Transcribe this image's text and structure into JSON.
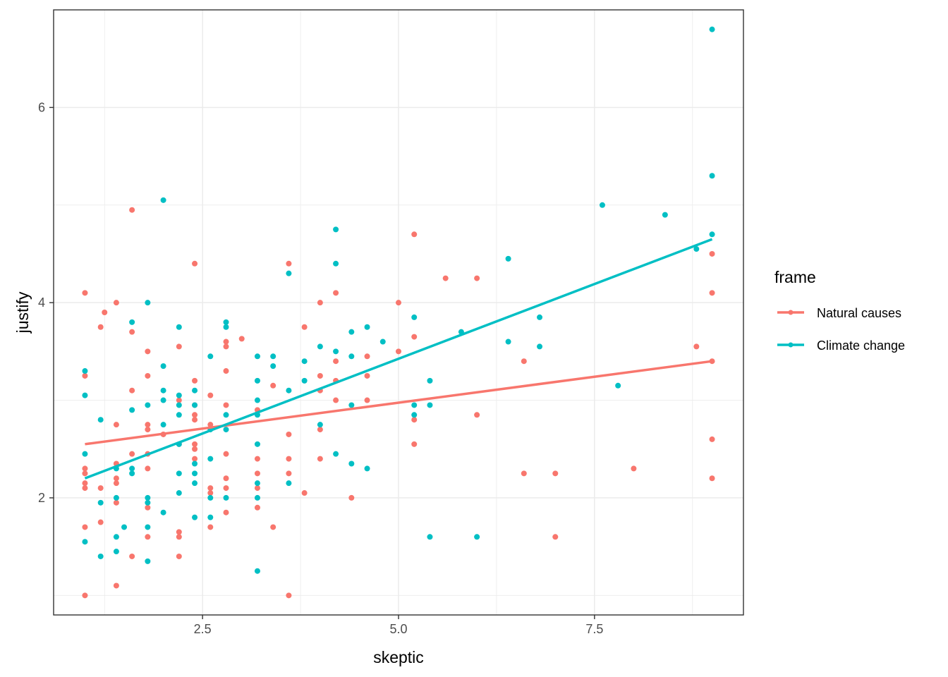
{
  "chart_data": {
    "type": "scatter",
    "title": "",
    "xlabel": "skeptic",
    "ylabel": "justify",
    "xlim": [
      0.6,
      9.4
    ],
    "ylim": [
      0.8,
      7.0
    ],
    "x_ticks": [
      2.5,
      5.0,
      7.5
    ],
    "x_tick_labels": [
      "2.5",
      "5.0",
      "7.5"
    ],
    "y_ticks": [
      2,
      4,
      6
    ],
    "y_tick_labels": [
      "2",
      "4",
      "6"
    ],
    "grid": true,
    "legend": {
      "title": "frame",
      "position": "right",
      "entries": [
        "Natural causes",
        "Climate change"
      ]
    },
    "series": [
      {
        "name": "Natural causes",
        "color": "#F8766D",
        "trend": {
          "x": [
            1.0,
            9.0
          ],
          "y": [
            2.55,
            3.4
          ]
        },
        "points": [
          [
            1.0,
            4.1
          ],
          [
            1.0,
            3.25
          ],
          [
            1.0,
            2.3
          ],
          [
            1.0,
            2.25
          ],
          [
            1.0,
            2.15
          ],
          [
            1.0,
            2.1
          ],
          [
            1.0,
            1.7
          ],
          [
            1.0,
            1.0
          ],
          [
            1.2,
            3.75
          ],
          [
            1.2,
            2.1
          ],
          [
            1.2,
            1.75
          ],
          [
            1.25,
            3.9
          ],
          [
            1.4,
            4.0
          ],
          [
            1.4,
            2.75
          ],
          [
            1.4,
            2.35
          ],
          [
            1.4,
            2.2
          ],
          [
            1.4,
            2.15
          ],
          [
            1.4,
            1.95
          ],
          [
            1.4,
            1.1
          ],
          [
            1.6,
            4.95
          ],
          [
            1.6,
            3.7
          ],
          [
            1.6,
            3.1
          ],
          [
            1.6,
            2.45
          ],
          [
            1.6,
            1.4
          ],
          [
            1.8,
            3.5
          ],
          [
            1.8,
            3.25
          ],
          [
            1.8,
            2.75
          ],
          [
            1.8,
            2.7
          ],
          [
            1.8,
            2.45
          ],
          [
            1.8,
            2.3
          ],
          [
            1.8,
            1.9
          ],
          [
            1.8,
            1.6
          ],
          [
            2.0,
            2.65
          ],
          [
            2.2,
            3.55
          ],
          [
            2.2,
            3.0
          ],
          [
            2.2,
            2.55
          ],
          [
            2.2,
            1.65
          ],
          [
            2.2,
            1.6
          ],
          [
            2.2,
            1.4
          ],
          [
            2.4,
            4.4
          ],
          [
            2.4,
            3.2
          ],
          [
            2.4,
            2.95
          ],
          [
            2.4,
            2.85
          ],
          [
            2.4,
            2.8
          ],
          [
            2.4,
            2.55
          ],
          [
            2.4,
            2.5
          ],
          [
            2.4,
            2.4
          ],
          [
            2.6,
            3.05
          ],
          [
            2.6,
            2.75
          ],
          [
            2.6,
            2.1
          ],
          [
            2.6,
            2.05
          ],
          [
            2.6,
            1.7
          ],
          [
            2.8,
            3.6
          ],
          [
            2.8,
            3.55
          ],
          [
            2.8,
            3.3
          ],
          [
            2.8,
            2.95
          ],
          [
            2.8,
            2.45
          ],
          [
            2.8,
            2.2
          ],
          [
            2.8,
            2.1
          ],
          [
            2.8,
            1.85
          ],
          [
            3.0,
            3.63
          ],
          [
            3.2,
            2.9
          ],
          [
            3.2,
            2.4
          ],
          [
            3.2,
            2.25
          ],
          [
            3.2,
            2.1
          ],
          [
            3.2,
            1.9
          ],
          [
            3.4,
            3.15
          ],
          [
            3.4,
            1.7
          ],
          [
            3.6,
            4.4
          ],
          [
            3.6,
            2.65
          ],
          [
            3.6,
            2.4
          ],
          [
            3.6,
            2.25
          ],
          [
            3.6,
            1.0
          ],
          [
            3.8,
            3.75
          ],
          [
            3.8,
            2.05
          ],
          [
            4.0,
            4.0
          ],
          [
            4.0,
            3.25
          ],
          [
            4.0,
            3.1
          ],
          [
            4.0,
            2.7
          ],
          [
            4.0,
            2.4
          ],
          [
            4.2,
            4.1
          ],
          [
            4.2,
            3.4
          ],
          [
            4.2,
            3.2
          ],
          [
            4.2,
            3.0
          ],
          [
            4.4,
            2.0
          ],
          [
            4.6,
            3.45
          ],
          [
            4.6,
            3.25
          ],
          [
            4.6,
            3.0
          ],
          [
            5.0,
            4.0
          ],
          [
            5.0,
            3.5
          ],
          [
            5.2,
            4.7
          ],
          [
            5.2,
            3.65
          ],
          [
            5.2,
            2.8
          ],
          [
            5.2,
            2.55
          ],
          [
            5.6,
            4.25
          ],
          [
            6.0,
            4.25
          ],
          [
            6.0,
            2.85
          ],
          [
            6.6,
            3.4
          ],
          [
            6.6,
            2.25
          ],
          [
            7.0,
            2.25
          ],
          [
            7.0,
            1.6
          ],
          [
            8.0,
            2.3
          ],
          [
            8.8,
            3.55
          ],
          [
            9.0,
            4.5
          ],
          [
            9.0,
            4.1
          ],
          [
            9.0,
            3.4
          ],
          [
            9.0,
            2.6
          ],
          [
            9.0,
            2.2
          ]
        ]
      },
      {
        "name": "Climate change",
        "color": "#00BFC4",
        "trend": {
          "x": [
            1.0,
            9.0
          ],
          "y": [
            2.2,
            4.65
          ]
        },
        "points": [
          [
            1.0,
            3.3
          ],
          [
            1.0,
            3.05
          ],
          [
            1.0,
            2.45
          ],
          [
            1.0,
            1.55
          ],
          [
            1.2,
            2.8
          ],
          [
            1.2,
            1.95
          ],
          [
            1.2,
            1.4
          ],
          [
            1.4,
            2.3
          ],
          [
            1.4,
            2.0
          ],
          [
            1.4,
            1.6
          ],
          [
            1.4,
            1.45
          ],
          [
            1.5,
            1.7
          ],
          [
            1.6,
            3.8
          ],
          [
            1.6,
            2.9
          ],
          [
            1.6,
            2.3
          ],
          [
            1.6,
            2.25
          ],
          [
            1.8,
            4.0
          ],
          [
            1.8,
            2.95
          ],
          [
            1.8,
            2.0
          ],
          [
            1.8,
            1.95
          ],
          [
            1.8,
            1.7
          ],
          [
            1.8,
            1.35
          ],
          [
            2.0,
            5.05
          ],
          [
            2.0,
            3.35
          ],
          [
            2.0,
            3.1
          ],
          [
            2.0,
            3.0
          ],
          [
            2.0,
            2.75
          ],
          [
            2.0,
            1.85
          ],
          [
            2.2,
            3.75
          ],
          [
            2.2,
            3.05
          ],
          [
            2.2,
            2.95
          ],
          [
            2.2,
            2.85
          ],
          [
            2.2,
            2.55
          ],
          [
            2.2,
            2.25
          ],
          [
            2.2,
            2.05
          ],
          [
            2.4,
            3.1
          ],
          [
            2.4,
            2.95
          ],
          [
            2.4,
            2.35
          ],
          [
            2.4,
            2.25
          ],
          [
            2.4,
            2.15
          ],
          [
            2.4,
            1.8
          ],
          [
            2.6,
            3.45
          ],
          [
            2.6,
            2.7
          ],
          [
            2.6,
            2.4
          ],
          [
            2.6,
            2.0
          ],
          [
            2.6,
            1.8
          ],
          [
            2.8,
            3.8
          ],
          [
            2.8,
            3.75
          ],
          [
            2.8,
            2.85
          ],
          [
            2.8,
            2.7
          ],
          [
            2.8,
            2.0
          ],
          [
            3.2,
            3.45
          ],
          [
            3.2,
            3.2
          ],
          [
            3.2,
            3.0
          ],
          [
            3.2,
            2.85
          ],
          [
            3.2,
            2.55
          ],
          [
            3.2,
            2.15
          ],
          [
            3.2,
            2.0
          ],
          [
            3.2,
            1.25
          ],
          [
            3.4,
            3.45
          ],
          [
            3.4,
            3.35
          ],
          [
            3.6,
            4.3
          ],
          [
            3.6,
            3.1
          ],
          [
            3.6,
            2.15
          ],
          [
            3.8,
            3.4
          ],
          [
            3.8,
            3.2
          ],
          [
            4.0,
            3.55
          ],
          [
            4.0,
            2.75
          ],
          [
            4.2,
            4.75
          ],
          [
            4.2,
            4.4
          ],
          [
            4.2,
            3.5
          ],
          [
            4.2,
            2.45
          ],
          [
            4.4,
            3.7
          ],
          [
            4.4,
            3.45
          ],
          [
            4.4,
            2.95
          ],
          [
            4.4,
            2.35
          ],
          [
            4.6,
            3.75
          ],
          [
            4.6,
            2.3
          ],
          [
            4.8,
            3.6
          ],
          [
            5.2,
            3.85
          ],
          [
            5.2,
            2.95
          ],
          [
            5.2,
            2.85
          ],
          [
            5.4,
            3.2
          ],
          [
            5.4,
            2.95
          ],
          [
            5.4,
            1.6
          ],
          [
            5.8,
            3.7
          ],
          [
            6.0,
            1.6
          ],
          [
            6.4,
            4.45
          ],
          [
            6.4,
            3.6
          ],
          [
            6.8,
            3.85
          ],
          [
            6.8,
            3.55
          ],
          [
            7.6,
            5.0
          ],
          [
            7.8,
            3.15
          ],
          [
            8.4,
            4.9
          ],
          [
            8.8,
            4.55
          ],
          [
            9.0,
            6.8
          ],
          [
            9.0,
            5.3
          ],
          [
            9.0,
            4.7
          ]
        ]
      }
    ]
  }
}
